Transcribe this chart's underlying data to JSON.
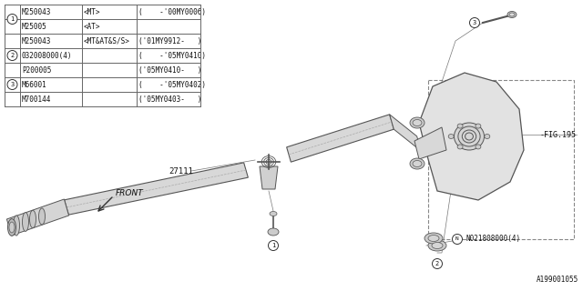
{
  "bg_color": "#ffffff",
  "line_color": "#555555",
  "text_color": "#111111",
  "table_rows": [
    [
      "M250043",
      "<MT>",
      "",
      "(    -'00MY0006)"
    ],
    [
      "M25005",
      "<AT>",
      "",
      ""
    ],
    [
      "M250043",
      "<MT&AT&S/S>",
      "('01MY9912-",
      "   )"
    ],
    [
      "032008000(4)",
      "",
      "(    -'05MY0410)",
      ""
    ],
    [
      "P200005",
      "",
      "('05MY0410-",
      "   )"
    ],
    [
      "M66001",
      "",
      "(    -'05MY0402)",
      ""
    ],
    [
      "M700144",
      "",
      "('05MY0403-",
      "   )"
    ]
  ],
  "circle_rows": [
    1,
    3.5,
    5.5
  ],
  "circle_labels": [
    "1",
    "2",
    "3"
  ],
  "part_number_bottom": "A199001055",
  "label_27111": "27111",
  "label_front": "FRONT",
  "label_fig195": "-FIG.195",
  "label_N": "N021808000(4)"
}
